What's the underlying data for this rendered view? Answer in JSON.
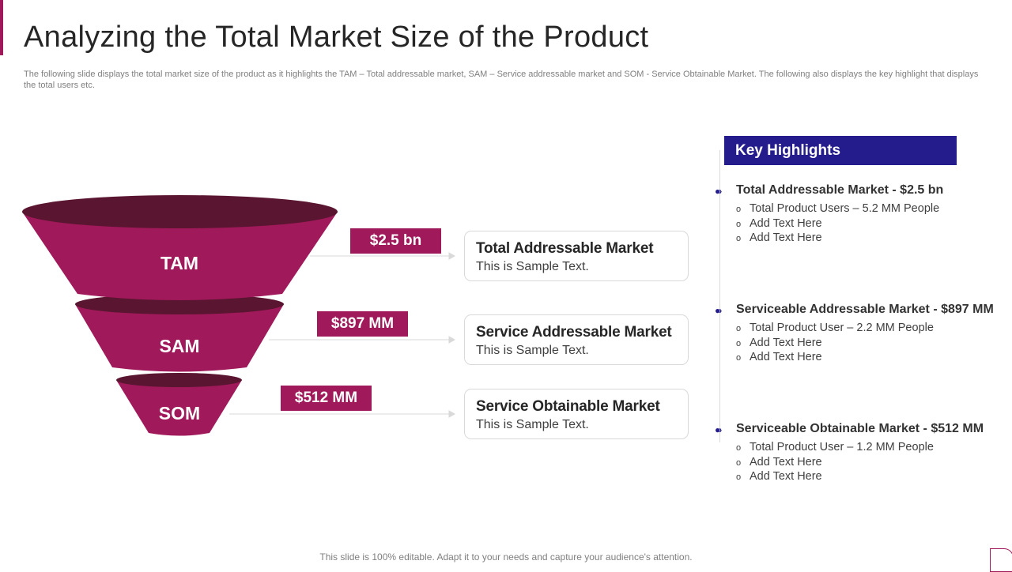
{
  "slide": {
    "title": "Analyzing the Total Market Size of the Product",
    "subtitle": "The following slide displays the total market size of the product as it highlights the TAM – Total addressable market, SAM – Service addressable market and SOM - Service Obtainable Market. The following also displays the key highlight that displays the total users etc.",
    "footer": "This slide is 100% editable. Adapt it to your needs and capture your audience's attention.",
    "colors": {
      "accent": "#a0195a",
      "funnel_top": "#5a1530",
      "navy": "#241c8c"
    }
  },
  "funnel": [
    {
      "label": "TAM",
      "value": "$2.5 bn",
      "box_title": "Total Addressable Market",
      "box_text": "This is Sample Text."
    },
    {
      "label": "SAM",
      "value": "$897 MM",
      "box_title": "Service Addressable Market",
      "box_text": "This is Sample Text."
    },
    {
      "label": "SOM",
      "value": "$512 MM",
      "box_title": "Service Obtainable Market",
      "box_text": "This is Sample Text."
    }
  ],
  "key_highlights": {
    "header": "Key Highlights",
    "bullet_icon": "double-chevron-bullet-icon",
    "items": [
      {
        "title": "Total Addressable Market - $2.5 bn",
        "points": [
          "Total Product Users – 5.2 MM People",
          "Add Text Here",
          "Add Text Here"
        ]
      },
      {
        "title": "Serviceable Addressable Market - $897 MM",
        "points": [
          "Total Product User – 2.2 MM People",
          "Add Text Here",
          "Add Text Here"
        ]
      },
      {
        "title": "Serviceable Obtainable Market - $512 MM",
        "points": [
          "Total Product User – 1.2 MM People",
          "Add Text Here",
          "Add Text Here"
        ]
      }
    ]
  }
}
